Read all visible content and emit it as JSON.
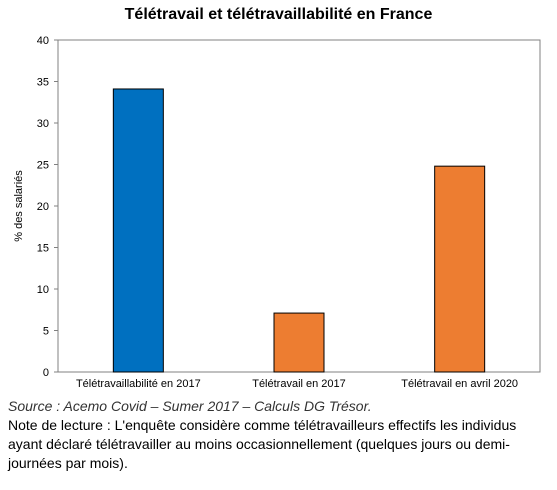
{
  "chart_data": {
    "type": "bar",
    "title": "Télétravail et télétravaillabilité en France",
    "xlabel": "",
    "ylabel": "% des salariés",
    "ylim": [
      0,
      40
    ],
    "yticks": [
      0,
      5,
      10,
      15,
      20,
      25,
      30,
      35,
      40
    ],
    "grid": false,
    "categories": [
      "Télétravaillabilité en 2017",
      "Télétravail en 2017",
      "Télétravail en avril 2020"
    ],
    "values": [
      34.1,
      7.1,
      24.8
    ],
    "colors": [
      "#0070C0",
      "#ED7D31",
      "#ED7D31"
    ]
  },
  "footer": {
    "source": "Source : Acemo Covid – Sumer 2017 – Calculs DG Trésor.",
    "note": "Note de lecture : L'enquête considère comme télétravailleurs effectifs les individus ayant déclaré télétravailler au moins occasionnellement (quelques jours ou demi-journées par mois)."
  }
}
